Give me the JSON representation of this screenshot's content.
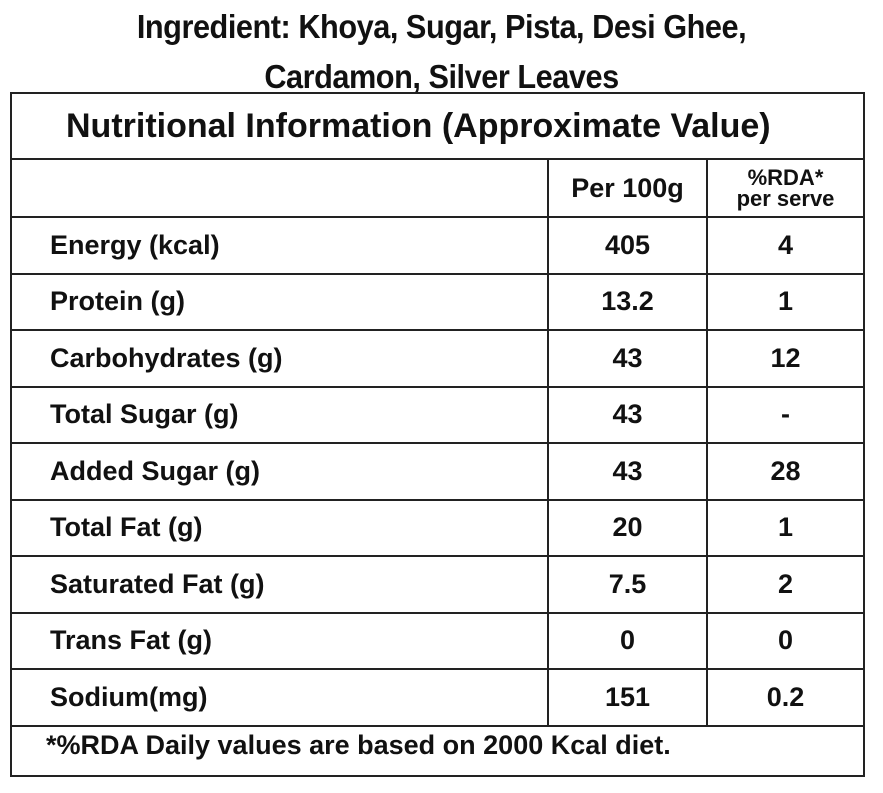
{
  "ingredients": {
    "line1": "Ingredient: Khoya, Sugar, Pista, Desi Ghee,",
    "line2": "Cardamon, Silver Leaves"
  },
  "nutrition": {
    "title": "Nutritional Information (Approximate Value)",
    "header": {
      "name": "",
      "per_100g": "Per 100g",
      "rda_line1": "%RDA*",
      "rda_line2": "per serve"
    },
    "rows": [
      {
        "name": "Energy (kcal)",
        "per_100g": "405",
        "rda": "4"
      },
      {
        "name": "Protein (g)",
        "per_100g": "13.2",
        "rda": "1"
      },
      {
        "name": "Carbohydrates (g)",
        "per_100g": "43",
        "rda": "12"
      },
      {
        "name": "Total Sugar (g)",
        "per_100g": "43",
        "rda": "-"
      },
      {
        "name": "Added Sugar (g)",
        "per_100g": "43",
        "rda": "28"
      },
      {
        "name": "Total Fat (g)",
        "per_100g": "20",
        "rda": "1"
      },
      {
        "name": "Saturated Fat (g)",
        "per_100g": "7.5",
        "rda": "2"
      },
      {
        "name": "Trans Fat (g)",
        "per_100g": "0",
        "rda": "0"
      },
      {
        "name": "Sodium(mg)",
        "per_100g": "151",
        "rda": "0.2"
      }
    ],
    "footnote": "*%RDA Daily values are based on 2000 Kcal diet."
  }
}
